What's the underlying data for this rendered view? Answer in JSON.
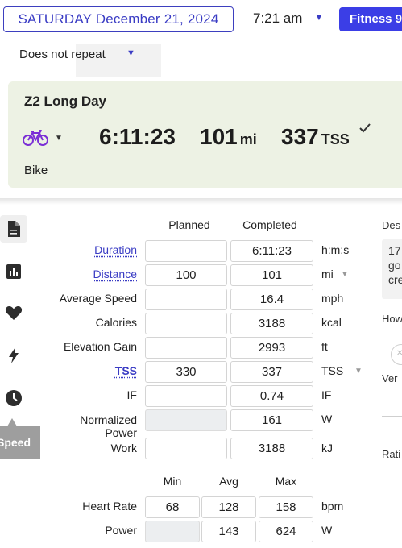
{
  "header": {
    "date_label": "SATURDAY December 21, 2024",
    "time_label": "7:21 am",
    "fitness_label": "Fitness 9",
    "repeat_label": "Does not repeat"
  },
  "workout": {
    "title": "Z2 Long Day",
    "sport": "Bike",
    "duration": "6:11:23",
    "distance_value": "101",
    "distance_unit": "mi",
    "tss_value": "337",
    "tss_unit": "TSS",
    "icon": "bike-icon",
    "completed_icon": "checkmark-icon"
  },
  "sidebar": {
    "icons": [
      "document-icon",
      "bar-chart-icon",
      "heart-icon",
      "lightning-icon",
      "clock-icon"
    ],
    "active_tab_label": "Speed"
  },
  "metrics": {
    "planned_header": "Planned",
    "completed_header": "Completed",
    "rows": [
      {
        "label": "Duration",
        "planned": "",
        "completed": "6:11:23",
        "unit": "h:m:s"
      },
      {
        "label": "Distance",
        "planned": "100",
        "completed": "101",
        "unit": "mi"
      },
      {
        "label": "Average Speed",
        "planned": "",
        "completed": "16.4",
        "unit": "mph"
      },
      {
        "label": "Calories",
        "planned": "",
        "completed": "3188",
        "unit": "kcal"
      },
      {
        "label": "Elevation Gain",
        "planned": "",
        "completed": "2993",
        "unit": "ft"
      },
      {
        "label": "TSS",
        "planned": "330",
        "completed": "337",
        "unit": "TSS"
      },
      {
        "label": "IF",
        "planned": "",
        "completed": "0.74",
        "unit": "IF"
      },
      {
        "label_line1": "Normalized",
        "label_line2": "Power",
        "planned": "",
        "completed": "161",
        "unit": "W"
      },
      {
        "label": "Work",
        "planned": "",
        "completed": "3188",
        "unit": "kJ"
      }
    ]
  },
  "ranges": {
    "min_header": "Min",
    "avg_header": "Avg",
    "max_header": "Max",
    "rows": [
      {
        "label": "Heart Rate",
        "min": "68",
        "avg": "128",
        "max": "158",
        "unit": "bpm"
      },
      {
        "label": "Power",
        "min": "",
        "avg": "143",
        "max": "624",
        "unit": "W"
      }
    ]
  },
  "right_panel": {
    "description_label": "Des",
    "description_lines": [
      "17",
      "go",
      "cre"
    ],
    "how_label": "How",
    "ver_label": "Ver",
    "rating_label": "Rati"
  },
  "colors": {
    "accent": "#3a3cc4",
    "fitness_button": "#3b3ee6",
    "card_background": "#edf2e4",
    "active_tab": "#9e9e9e"
  }
}
